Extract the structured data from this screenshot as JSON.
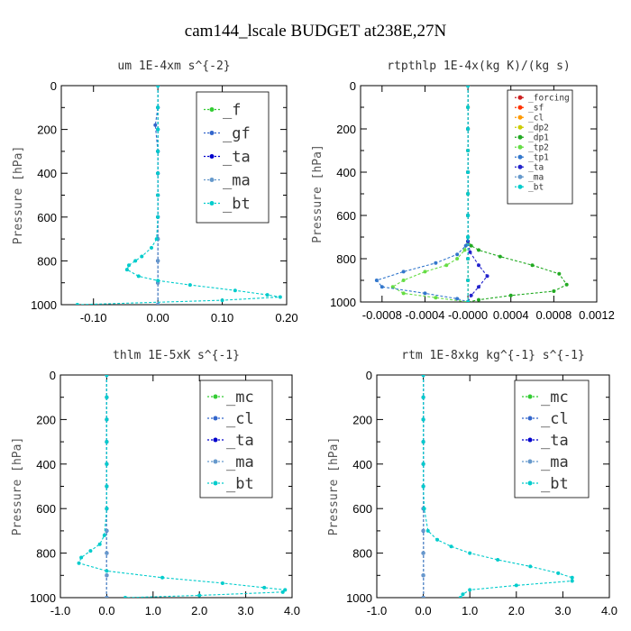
{
  "figure_title": "cam144_lscale  BUDGET at238E,27N",
  "chart_data": [
    {
      "type": "line",
      "title": "um   1E-4xm s^{-2}",
      "ylabel": "Pressure [hPa]",
      "xlim": [
        -0.15,
        0.2
      ],
      "ylim": [
        1000,
        0
      ],
      "xticks": [
        -0.1,
        0.0,
        0.1,
        0.2
      ],
      "xtick_labels": [
        "-0.10",
        "0.00",
        "0.10",
        "0.20"
      ],
      "yticks": [
        0,
        200,
        400,
        600,
        800,
        1000
      ],
      "grid": false,
      "legend_position": "top-right",
      "series": [
        {
          "name": "_f",
          "color": "#33cc33",
          "x": [
            0,
            0,
            0,
            0,
            0,
            0,
            0,
            0,
            0,
            0,
            0
          ],
          "y": [
            0,
            100,
            200,
            300,
            400,
            500,
            600,
            700,
            800,
            900,
            1000
          ]
        },
        {
          "name": "_gf",
          "color": "#3366cc",
          "x": [
            0,
            0,
            -0.004,
            0,
            0,
            0,
            0,
            0,
            0,
            0,
            0
          ],
          "y": [
            0,
            100,
            180,
            300,
            400,
            500,
            600,
            700,
            800,
            900,
            1000
          ]
        },
        {
          "name": "_ta",
          "color": "#0000cc",
          "x": [
            0,
            0,
            0,
            0,
            0,
            0,
            0,
            0,
            0,
            0,
            0
          ],
          "y": [
            0,
            100,
            200,
            300,
            400,
            500,
            600,
            700,
            800,
            900,
            1000
          ]
        },
        {
          "name": "_ma",
          "color": "#6699cc",
          "x": [
            0,
            0,
            0,
            0,
            0,
            0,
            0,
            0,
            0,
            0,
            0
          ],
          "y": [
            0,
            100,
            200,
            300,
            400,
            500,
            600,
            700,
            800,
            900,
            1000
          ]
        },
        {
          "name": "_bt",
          "color": "#00cccc",
          "x": [
            0,
            0,
            0,
            0,
            0,
            0,
            0,
            -0.002,
            -0.01,
            -0.025,
            -0.035,
            -0.045,
            -0.048,
            -0.03,
            0.0,
            0.05,
            0.12,
            0.17,
            0.19,
            0.1,
            -0.125
          ],
          "y": [
            0,
            100,
            200,
            300,
            400,
            500,
            600,
            700,
            740,
            780,
            800,
            820,
            840,
            870,
            890,
            910,
            935,
            955,
            965,
            980,
            1000
          ]
        }
      ]
    },
    {
      "type": "line",
      "title": "rtpthlp   1E-4x(kg K)/(kg s)",
      "ylabel": "Pressure [hPa]",
      "xlim": [
        -0.001,
        0.0012
      ],
      "ylim": [
        1000,
        0
      ],
      "xticks": [
        -0.0008,
        -0.0004,
        0.0,
        0.0004,
        0.0008,
        0.0012
      ],
      "xtick_labels": [
        "-0.0008",
        "-0.0004",
        "-0.0000",
        "0.0004",
        "0.0008",
        "0.0012"
      ],
      "yticks": [
        0,
        200,
        400,
        600,
        800,
        1000
      ],
      "grid": false,
      "legend_position": "top-right",
      "series": [
        {
          "name": "_forcing",
          "color": "#cc2222",
          "x": [
            0,
            0,
            0,
            0,
            0,
            0,
            0,
            0,
            0,
            0,
            0
          ],
          "y": [
            0,
            100,
            200,
            300,
            400,
            500,
            600,
            700,
            800,
            900,
            1000
          ]
        },
        {
          "name": "_sf",
          "color": "#ff3300",
          "x": [
            0,
            0,
            0,
            0,
            0,
            0,
            0,
            0,
            0,
            0,
            0
          ],
          "y": [
            0,
            100,
            200,
            300,
            400,
            500,
            600,
            700,
            800,
            900,
            1000
          ]
        },
        {
          "name": "_cl",
          "color": "#ff9900",
          "x": [
            0,
            0,
            0,
            0,
            0,
            0,
            0,
            0,
            0,
            0,
            0
          ],
          "y": [
            0,
            100,
            200,
            300,
            400,
            500,
            600,
            700,
            800,
            900,
            1000
          ]
        },
        {
          "name": "_dp2",
          "color": "#cccc00",
          "x": [
            0,
            0,
            0,
            0,
            0,
            0,
            0,
            0,
            0,
            0,
            0
          ],
          "y": [
            0,
            100,
            200,
            300,
            400,
            500,
            600,
            700,
            800,
            900,
            1000
          ]
        },
        {
          "name": "_dp1",
          "color": "#22aa22",
          "x": [
            0,
            0,
            0,
            0,
            0,
            0,
            3e-05,
            0.0001,
            0.0003,
            0.0006,
            0.00085,
            0.00092,
            0.0008,
            0.0004,
            0.0001,
            0
          ],
          "y": [
            0,
            200,
            400,
            600,
            700,
            720,
            740,
            760,
            790,
            830,
            870,
            920,
            950,
            970,
            990,
            1000
          ]
        },
        {
          "name": "_tp2",
          "color": "#66dd44",
          "x": [
            0,
            0,
            0,
            0,
            0,
            0,
            -3e-05,
            -0.0001,
            -0.0002,
            -0.0004,
            -0.0006,
            -0.0007,
            -0.0006,
            -0.0003,
            0
          ],
          "y": [
            0,
            200,
            400,
            600,
            700,
            720,
            760,
            800,
            830,
            860,
            900,
            930,
            960,
            980,
            1000
          ]
        },
        {
          "name": "_tp1",
          "color": "#3377cc",
          "x": [
            0,
            0,
            0,
            0,
            0,
            -2e-05,
            -0.0001,
            -0.0003,
            -0.0006,
            -0.00085,
            -0.0008,
            -0.0004,
            -0.0001,
            0
          ],
          "y": [
            0,
            200,
            400,
            600,
            700,
            740,
            780,
            820,
            860,
            900,
            930,
            960,
            985,
            1000
          ]
        },
        {
          "name": "_ta",
          "color": "#2222cc",
          "x": [
            0,
            0,
            0,
            0,
            0,
            2e-05,
            0.0001,
            0.00018,
            0.0001,
            3e-05,
            0
          ],
          "y": [
            0,
            200,
            400,
            600,
            720,
            770,
            830,
            880,
            930,
            970,
            1000
          ]
        },
        {
          "name": "_ma",
          "color": "#6699cc",
          "x": [
            0,
            0,
            0,
            0,
            0,
            0,
            0,
            0,
            0,
            0,
            0
          ],
          "y": [
            0,
            100,
            200,
            300,
            400,
            500,
            600,
            700,
            800,
            900,
            1000
          ]
        },
        {
          "name": "_bt",
          "color": "#00cccc",
          "x": [
            0,
            0,
            0,
            0,
            0,
            0,
            0,
            0,
            0,
            0,
            0
          ],
          "y": [
            0,
            100,
            200,
            300,
            400,
            500,
            600,
            700,
            800,
            900,
            1000
          ]
        }
      ]
    },
    {
      "type": "line",
      "title": "thlm   1E-5xK s^{-1}",
      "ylabel": "Pressure [hPa]",
      "xlim": [
        -1.0,
        4.0
      ],
      "ylim": [
        1000,
        0
      ],
      "xticks": [
        -1.0,
        0.0,
        1.0,
        2.0,
        3.0,
        4.0
      ],
      "xtick_labels": [
        "-1.0",
        "0.0",
        "1.0",
        "2.0",
        "3.0",
        "4.0"
      ],
      "yticks": [
        0,
        200,
        400,
        600,
        800,
        1000
      ],
      "grid": false,
      "legend_position": "top-right",
      "series": [
        {
          "name": "_mc",
          "color": "#33cc33",
          "x": [
            0,
            0,
            0,
            0,
            0,
            0,
            0,
            0,
            0,
            0,
            0
          ],
          "y": [
            0,
            100,
            200,
            300,
            400,
            500,
            600,
            700,
            800,
            900,
            1000
          ]
        },
        {
          "name": "_cl",
          "color": "#3366cc",
          "x": [
            0,
            0,
            0,
            0,
            0,
            0,
            0,
            0,
            0,
            0,
            0
          ],
          "y": [
            0,
            100,
            200,
            300,
            400,
            500,
            600,
            700,
            800,
            900,
            1000
          ]
        },
        {
          "name": "_ta",
          "color": "#0000cc",
          "x": [
            0,
            0,
            0,
            0,
            0,
            0,
            0,
            0,
            0,
            0,
            0
          ],
          "y": [
            0,
            100,
            200,
            300,
            400,
            500,
            600,
            700,
            800,
            900,
            1000
          ]
        },
        {
          "name": "_ma",
          "color": "#6699cc",
          "x": [
            0,
            0,
            0,
            0,
            0,
            0,
            0,
            0,
            0,
            0,
            0
          ],
          "y": [
            0,
            100,
            200,
            300,
            400,
            500,
            600,
            700,
            800,
            900,
            1000
          ]
        },
        {
          "name": "_bt",
          "color": "#00cccc",
          "x": [
            0,
            0,
            0,
            0,
            0,
            0,
            0,
            -0.05,
            -0.15,
            -0.35,
            -0.55,
            -0.6,
            0.0,
            1.2,
            2.5,
            3.4,
            3.85,
            3.8,
            2.0,
            0.4
          ],
          "y": [
            0,
            100,
            200,
            300,
            400,
            500,
            600,
            720,
            760,
            790,
            820,
            845,
            880,
            910,
            935,
            955,
            965,
            975,
            990,
            1000
          ]
        }
      ]
    },
    {
      "type": "line",
      "title": "rtm   1E-8xkg kg^{-1} s^{-1}",
      "ylabel": "Pressure [hPa]",
      "xlim": [
        -1.0,
        4.0
      ],
      "ylim": [
        1000,
        0
      ],
      "xticks": [
        -1.0,
        0.0,
        1.0,
        2.0,
        3.0,
        4.0
      ],
      "xtick_labels": [
        "-1.0",
        "0.0",
        "1.0",
        "2.0",
        "3.0",
        "4.0"
      ],
      "yticks": [
        0,
        200,
        400,
        600,
        800,
        1000
      ],
      "grid": false,
      "legend_position": "top-right",
      "series": [
        {
          "name": "_mc",
          "color": "#33cc33",
          "x": [
            0,
            0,
            0,
            0,
            0,
            0,
            0,
            0,
            0,
            0,
            0
          ],
          "y": [
            0,
            100,
            200,
            300,
            400,
            500,
            600,
            700,
            800,
            900,
            1000
          ]
        },
        {
          "name": "_cl",
          "color": "#3366cc",
          "x": [
            0,
            0,
            0,
            0,
            0,
            0,
            0,
            0,
            0,
            0,
            0
          ],
          "y": [
            0,
            100,
            200,
            300,
            400,
            500,
            600,
            700,
            800,
            900,
            1000
          ]
        },
        {
          "name": "_ta",
          "color": "#0000cc",
          "x": [
            0,
            0,
            0,
            0,
            0,
            0,
            0,
            0,
            0,
            0,
            0
          ],
          "y": [
            0,
            100,
            200,
            300,
            400,
            500,
            600,
            700,
            800,
            900,
            1000
          ]
        },
        {
          "name": "_ma",
          "color": "#6699cc",
          "x": [
            0,
            0,
            0,
            0,
            0,
            0,
            0,
            0,
            0,
            0,
            0
          ],
          "y": [
            0,
            100,
            200,
            300,
            400,
            500,
            600,
            700,
            800,
            900,
            1000
          ]
        },
        {
          "name": "_bt",
          "color": "#00cccc",
          "x": [
            0,
            0,
            0,
            0,
            0,
            0,
            0.02,
            0.1,
            0.3,
            0.6,
            1.0,
            1.6,
            2.3,
            2.9,
            3.2,
            3.2,
            2.0,
            1.0,
            0.85,
            0.8
          ],
          "y": [
            0,
            100,
            200,
            300,
            400,
            500,
            600,
            700,
            740,
            770,
            800,
            830,
            860,
            890,
            910,
            925,
            945,
            965,
            985,
            1000
          ]
        }
      ]
    }
  ]
}
